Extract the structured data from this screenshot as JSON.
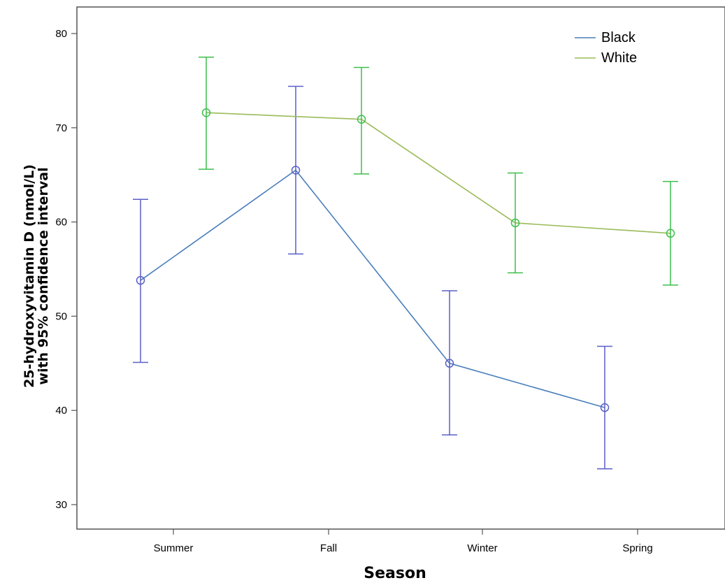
{
  "chart_data": {
    "type": "line",
    "title": "",
    "xlabel": "Season",
    "ylabel_line1": "25-hydroxyvitamin D (nmol/L)",
    "ylabel_line2": "with 95% confidence interval",
    "categories": [
      "Summer",
      "Fall",
      "Winter",
      "Spring"
    ],
    "ylim": [
      27,
      82
    ],
    "yticks": [
      30,
      40,
      50,
      60,
      70,
      80
    ],
    "grid": false,
    "legend_position": "top-right",
    "error_bars": "95% confidence interval",
    "series": [
      {
        "name": "Black",
        "color": "#4a7ebb",
        "marker_color": "#5b5fc7",
        "marker": "circle-open",
        "values": [
          53.8,
          65.5,
          45.0,
          40.3
        ],
        "ci_low": [
          45.1,
          56.6,
          37.4,
          33.8
        ],
        "ci_high": [
          62.4,
          74.4,
          52.7,
          46.8
        ]
      },
      {
        "name": "White",
        "color": "#9bbb59",
        "marker_color": "#3cbf4a",
        "marker": "circle-open",
        "values": [
          71.6,
          70.9,
          59.9,
          58.8
        ],
        "ci_low": [
          65.6,
          65.1,
          54.6,
          53.3
        ],
        "ci_high": [
          77.5,
          76.4,
          65.2,
          64.3
        ]
      }
    ]
  }
}
